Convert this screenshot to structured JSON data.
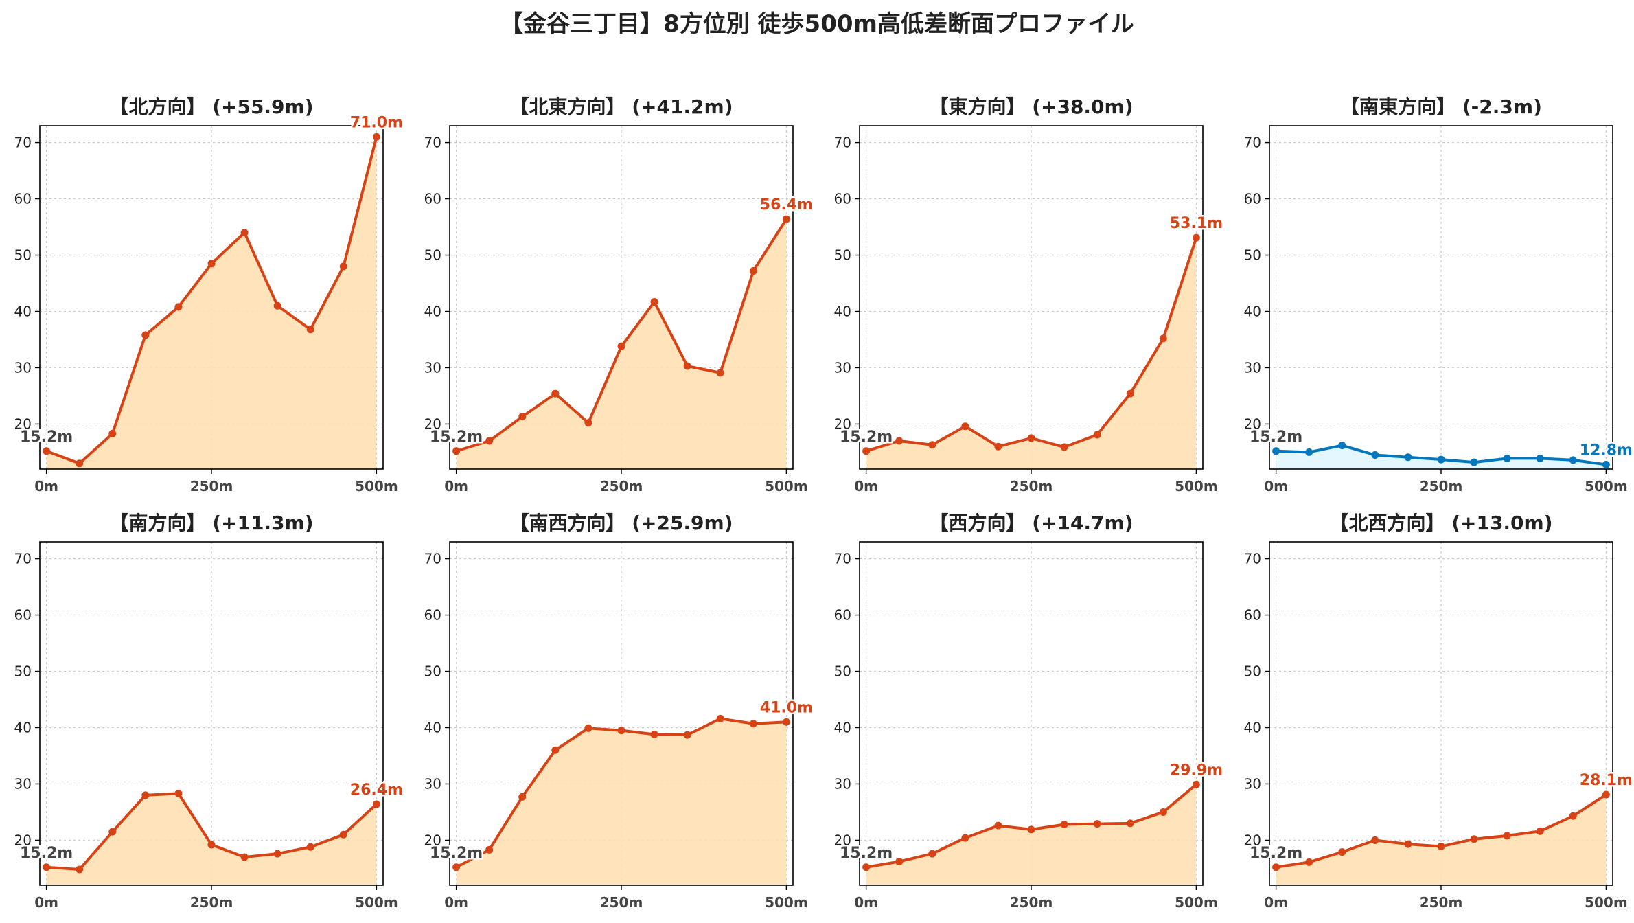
{
  "title": "【金谷三丁目】8方位別 徒歩500m高低差断面プロファイル",
  "colors": {
    "up": "#d84315",
    "down": "#0277bd",
    "up_fill": "#ffe0b2",
    "down_fill": "#e1f5fe",
    "start_label": "#444444",
    "grid": "#cccccc"
  },
  "chart_data": [
    {
      "type": "area",
      "title": "【北方向】 (+55.9m)",
      "x": [
        0,
        50,
        100,
        150,
        200,
        250,
        300,
        350,
        400,
        450,
        500
      ],
      "y": [
        15.2,
        13.0,
        18.3,
        35.8,
        40.8,
        48.5,
        54.0,
        41.0,
        36.8,
        48.0,
        71.0
      ],
      "start_label": "15.2m",
      "end_label": "71.0m",
      "trend": "up",
      "xticks": [
        "0m",
        "250m",
        "500m"
      ],
      "yticks": [
        "20",
        "30",
        "40",
        "50",
        "60",
        "70"
      ],
      "ylim": [
        12,
        73
      ],
      "xlim": [
        -10,
        510
      ],
      "grid": true
    },
    {
      "type": "area",
      "title": "【北東方向】 (+41.2m)",
      "x": [
        0,
        50,
        100,
        150,
        200,
        250,
        300,
        350,
        400,
        450,
        500
      ],
      "y": [
        15.2,
        17.0,
        21.3,
        25.4,
        20.2,
        33.8,
        41.7,
        30.3,
        29.1,
        47.2,
        56.4
      ],
      "start_label": "15.2m",
      "end_label": "56.4m",
      "trend": "up",
      "xticks": [
        "0m",
        "250m",
        "500m"
      ],
      "yticks": [
        "20",
        "30",
        "40",
        "50",
        "60",
        "70"
      ],
      "ylim": [
        12,
        73
      ],
      "xlim": [
        -10,
        510
      ],
      "grid": true
    },
    {
      "type": "area",
      "title": "【東方向】 (+38.0m)",
      "x": [
        0,
        50,
        100,
        150,
        200,
        250,
        300,
        350,
        400,
        450,
        500
      ],
      "y": [
        15.2,
        17.0,
        16.3,
        19.6,
        16.0,
        17.5,
        15.9,
        18.1,
        25.4,
        35.2,
        53.1
      ],
      "start_label": "15.2m",
      "end_label": "53.1m",
      "trend": "up",
      "xticks": [
        "0m",
        "250m",
        "500m"
      ],
      "yticks": [
        "20",
        "30",
        "40",
        "50",
        "60",
        "70"
      ],
      "ylim": [
        12,
        73
      ],
      "xlim": [
        -10,
        510
      ],
      "grid": true
    },
    {
      "type": "area",
      "title": "【南東方向】 (-2.3m)",
      "x": [
        0,
        50,
        100,
        150,
        200,
        250,
        300,
        350,
        400,
        450,
        500
      ],
      "y": [
        15.2,
        15.0,
        16.2,
        14.5,
        14.1,
        13.7,
        13.2,
        13.9,
        13.9,
        13.6,
        12.8
      ],
      "start_label": "15.2m",
      "end_label": "12.8m",
      "trend": "down",
      "xticks": [
        "0m",
        "250m",
        "500m"
      ],
      "yticks": [
        "20",
        "30",
        "40",
        "50",
        "60",
        "70"
      ],
      "ylim": [
        12,
        73
      ],
      "xlim": [
        -10,
        510
      ],
      "grid": true
    },
    {
      "type": "area",
      "title": "【南方向】 (+11.3m)",
      "x": [
        0,
        50,
        100,
        150,
        200,
        250,
        300,
        350,
        400,
        450,
        500
      ],
      "y": [
        15.2,
        14.8,
        21.5,
        28.0,
        28.3,
        19.2,
        17.0,
        17.6,
        18.8,
        21.0,
        26.4
      ],
      "start_label": "15.2m",
      "end_label": "26.4m",
      "trend": "up",
      "xticks": [
        "0m",
        "250m",
        "500m"
      ],
      "yticks": [
        "20",
        "30",
        "40",
        "50",
        "60",
        "70"
      ],
      "ylim": [
        12,
        73
      ],
      "xlim": [
        -10,
        510
      ],
      "grid": true
    },
    {
      "type": "area",
      "title": "【南西方向】 (+25.9m)",
      "x": [
        0,
        50,
        100,
        150,
        200,
        250,
        300,
        350,
        400,
        450,
        500
      ],
      "y": [
        15.2,
        18.3,
        27.7,
        36.0,
        39.9,
        39.5,
        38.8,
        38.7,
        41.6,
        40.7,
        41.0
      ],
      "start_label": "15.2m",
      "end_label": "41.0m",
      "trend": "up",
      "xticks": [
        "0m",
        "250m",
        "500m"
      ],
      "yticks": [
        "20",
        "30",
        "40",
        "50",
        "60",
        "70"
      ],
      "ylim": [
        12,
        73
      ],
      "xlim": [
        -10,
        510
      ],
      "grid": true
    },
    {
      "type": "area",
      "title": "【西方向】 (+14.7m)",
      "x": [
        0,
        50,
        100,
        150,
        200,
        250,
        300,
        350,
        400,
        450,
        500
      ],
      "y": [
        15.2,
        16.2,
        17.6,
        20.4,
        22.6,
        21.9,
        22.8,
        22.9,
        23.0,
        25.0,
        29.9
      ],
      "start_label": "15.2m",
      "end_label": "29.9m",
      "trend": "up",
      "xticks": [
        "0m",
        "250m",
        "500m"
      ],
      "yticks": [
        "20",
        "30",
        "40",
        "50",
        "60",
        "70"
      ],
      "ylim": [
        12,
        73
      ],
      "xlim": [
        -10,
        510
      ],
      "grid": true
    },
    {
      "type": "area",
      "title": "【北西方向】 (+13.0m)",
      "x": [
        0,
        50,
        100,
        150,
        200,
        250,
        300,
        350,
        400,
        450,
        500
      ],
      "y": [
        15.2,
        16.1,
        17.9,
        20.0,
        19.3,
        18.9,
        20.2,
        20.8,
        21.6,
        24.3,
        28.1
      ],
      "start_label": "15.2m",
      "end_label": "28.1m",
      "trend": "up",
      "xticks": [
        "0m",
        "250m",
        "500m"
      ],
      "yticks": [
        "20",
        "30",
        "40",
        "50",
        "60",
        "70"
      ],
      "ylim": [
        12,
        73
      ],
      "xlim": [
        -10,
        510
      ],
      "grid": true
    }
  ]
}
